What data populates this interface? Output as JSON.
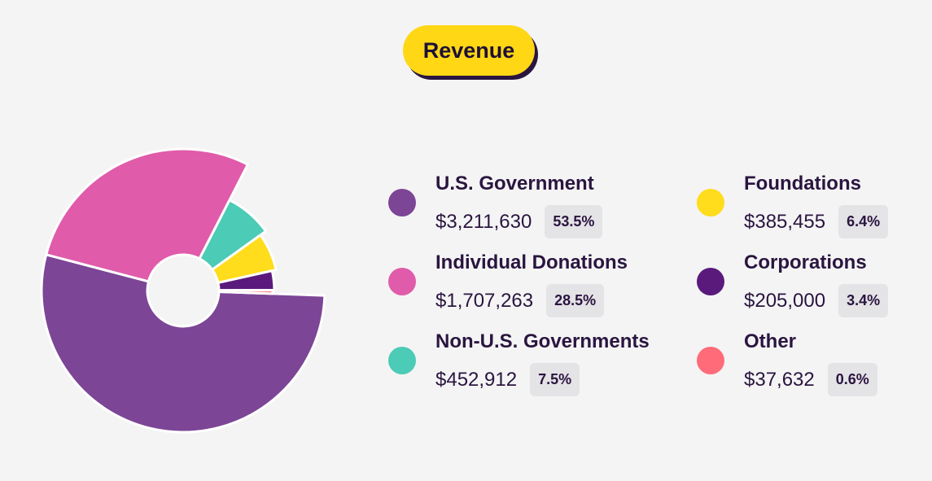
{
  "title": "Revenue",
  "chart_data": {
    "type": "pie",
    "variant": "donut",
    "title": "Revenue",
    "series": [
      {
        "name": "U.S. Government",
        "amount_label": "$3,211,630",
        "value": 3211630,
        "percent_label": "53.5%",
        "color": "#7c4596"
      },
      {
        "name": "Individual Donations",
        "amount_label": "$1,707,263",
        "value": 1707263,
        "percent_label": "28.5%",
        "color": "#e05baa"
      },
      {
        "name": "Non-U.S. Governments",
        "amount_label": "$452,912",
        "value": 452912,
        "percent_label": "7.5%",
        "color": "#4ccbb6"
      },
      {
        "name": "Foundations",
        "amount_label": "$385,455",
        "value": 385455,
        "percent_label": "6.4%",
        "color": "#ffdc1c"
      },
      {
        "name": "Corporations",
        "amount_label": "$205,000",
        "value": 205000,
        "percent_label": "3.4%",
        "color": "#5a1a7c"
      },
      {
        "name": "Other",
        "amount_label": "$37,632",
        "value": 37632,
        "percent_label": "0.6%",
        "color": "#ff6b78"
      }
    ]
  }
}
